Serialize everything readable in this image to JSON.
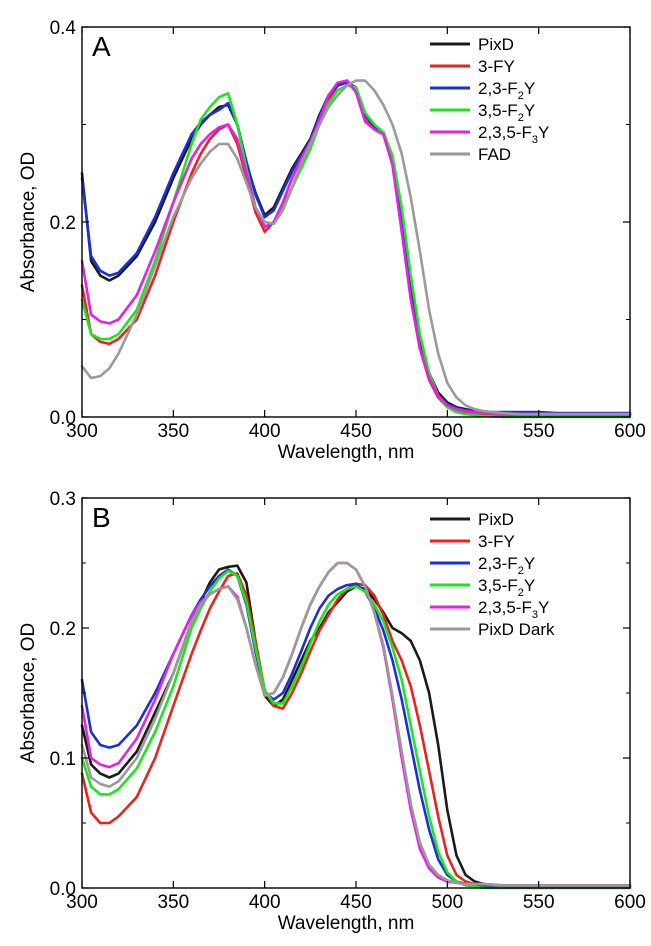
{
  "chart_data": [
    {
      "type": "line",
      "panel_label": "A",
      "xlabel": "Wavelength, nm",
      "ylabel": "Absorbance, OD",
      "xlim": [
        300,
        600
      ],
      "ylim": [
        0,
        0.4
      ],
      "xticks": [
        300,
        350,
        400,
        450,
        500,
        550,
        600
      ],
      "yticks": [
        0.0,
        0.2,
        0.4
      ],
      "ytick_labels": [
        "0.0",
        "0.2",
        "0.4"
      ],
      "legend_position": "top-right",
      "x": [
        300,
        305,
        310,
        315,
        320,
        330,
        340,
        350,
        360,
        365,
        370,
        375,
        380,
        385,
        390,
        395,
        400,
        405,
        410,
        415,
        420,
        425,
        430,
        435,
        440,
        445,
        450,
        455,
        460,
        465,
        470,
        475,
        480,
        485,
        490,
        495,
        500,
        505,
        510,
        515,
        520,
        530,
        540,
        550,
        560,
        580,
        600
      ],
      "series": [
        {
          "name": "PixD",
          "legend_parts": [
            {
              "t": "PixD"
            }
          ],
          "color": "#1a1a1a",
          "values": [
            0.25,
            0.16,
            0.145,
            0.14,
            0.145,
            0.165,
            0.2,
            0.245,
            0.285,
            0.3,
            0.31,
            0.318,
            0.32,
            0.3,
            0.26,
            0.23,
            0.207,
            0.215,
            0.235,
            0.255,
            0.27,
            0.285,
            0.31,
            0.33,
            0.342,
            0.345,
            0.335,
            0.305,
            0.295,
            0.29,
            0.26,
            0.2,
            0.13,
            0.08,
            0.045,
            0.025,
            0.015,
            0.01,
            0.008,
            0.006,
            0.005,
            0.004,
            0.004,
            0.004,
            0.003,
            0.003,
            0.003
          ]
        },
        {
          "name": "3-FY",
          "legend_parts": [
            {
              "t": "3-FY"
            }
          ],
          "color": "#e8231c",
          "values": [
            0.135,
            0.085,
            0.077,
            0.075,
            0.08,
            0.1,
            0.145,
            0.2,
            0.25,
            0.27,
            0.285,
            0.295,
            0.3,
            0.28,
            0.245,
            0.21,
            0.19,
            0.2,
            0.22,
            0.245,
            0.265,
            0.28,
            0.3,
            0.325,
            0.34,
            0.345,
            0.335,
            0.305,
            0.295,
            0.29,
            0.26,
            0.195,
            0.125,
            0.07,
            0.038,
            0.02,
            0.01,
            0.006,
            0.004,
            0.003,
            0.003,
            0.002,
            0.002,
            0.002,
            0.002,
            0.002,
            0.002
          ]
        },
        {
          "name": "2,3-F2Y",
          "legend_parts": [
            {
              "t": "2,3-F"
            },
            {
              "t": "2",
              "sub": true
            },
            {
              "t": "Y"
            }
          ],
          "color": "#1c2fd6",
          "values": [
            0.245,
            0.165,
            0.15,
            0.145,
            0.148,
            0.168,
            0.205,
            0.25,
            0.29,
            0.302,
            0.31,
            0.315,
            0.322,
            0.3,
            0.262,
            0.228,
            0.205,
            0.212,
            0.232,
            0.252,
            0.268,
            0.283,
            0.308,
            0.33,
            0.34,
            0.343,
            0.338,
            0.31,
            0.298,
            0.292,
            0.262,
            0.2,
            0.125,
            0.072,
            0.04,
            0.022,
            0.013,
            0.009,
            0.007,
            0.006,
            0.005,
            0.005,
            0.005,
            0.005,
            0.004,
            0.004,
            0.004
          ]
        },
        {
          "name": "3,5-F2Y",
          "legend_parts": [
            {
              "t": "3,5-F"
            },
            {
              "t": "2",
              "sub": true
            },
            {
              "t": "Y"
            }
          ],
          "color": "#1de51d",
          "values": [
            0.12,
            0.085,
            0.08,
            0.08,
            0.085,
            0.11,
            0.16,
            0.22,
            0.28,
            0.305,
            0.318,
            0.328,
            0.332,
            0.3,
            0.255,
            0.215,
            0.195,
            0.2,
            0.215,
            0.235,
            0.255,
            0.275,
            0.3,
            0.322,
            0.335,
            0.34,
            0.338,
            0.312,
            0.3,
            0.292,
            0.268,
            0.215,
            0.145,
            0.085,
            0.045,
            0.022,
            0.01,
            0.005,
            0.003,
            0.002,
            0.001,
            0.0,
            0.0,
            0.0,
            0.0,
            0.0,
            0.0
          ]
        },
        {
          "name": "2,3,5-F3Y",
          "legend_parts": [
            {
              "t": "2,3,5-F"
            },
            {
              "t": "3",
              "sub": true
            },
            {
              "t": "Y"
            }
          ],
          "color": "#e620e6",
          "values": [
            0.16,
            0.105,
            0.098,
            0.096,
            0.1,
            0.125,
            0.17,
            0.22,
            0.265,
            0.28,
            0.29,
            0.297,
            0.3,
            0.285,
            0.25,
            0.215,
            0.195,
            0.2,
            0.22,
            0.245,
            0.265,
            0.282,
            0.305,
            0.33,
            0.343,
            0.345,
            0.333,
            0.303,
            0.295,
            0.29,
            0.258,
            0.19,
            0.12,
            0.07,
            0.04,
            0.022,
            0.012,
            0.008,
            0.006,
            0.005,
            0.004,
            0.003,
            0.003,
            0.003,
            0.003,
            0.003,
            0.003
          ]
        },
        {
          "name": "FAD",
          "legend_parts": [
            {
              "t": "FAD"
            }
          ],
          "color": "#9a9a9a",
          "values": [
            0.052,
            0.04,
            0.042,
            0.05,
            0.065,
            0.105,
            0.155,
            0.205,
            0.245,
            0.26,
            0.272,
            0.28,
            0.28,
            0.265,
            0.24,
            0.215,
            0.2,
            0.198,
            0.212,
            0.235,
            0.26,
            0.28,
            0.3,
            0.318,
            0.33,
            0.34,
            0.345,
            0.345,
            0.335,
            0.32,
            0.3,
            0.27,
            0.225,
            0.17,
            0.11,
            0.065,
            0.035,
            0.02,
            0.012,
            0.008,
            0.006,
            0.004,
            0.003,
            0.003,
            0.003,
            0.003,
            0.003
          ]
        }
      ]
    },
    {
      "type": "line",
      "panel_label": "B",
      "xlabel": "Wavelength, nm",
      "ylabel": "Absorbance, OD",
      "xlim": [
        300,
        600
      ],
      "ylim": [
        0,
        0.3
      ],
      "xticks": [
        300,
        350,
        400,
        450,
        500,
        550,
        600
      ],
      "yticks": [
        0.0,
        0.1,
        0.2,
        0.3
      ],
      "ytick_labels": [
        "0.0",
        "0.1",
        "0.2",
        "0.3"
      ],
      "legend_position": "top-right",
      "x": [
        300,
        305,
        310,
        315,
        320,
        330,
        340,
        350,
        360,
        365,
        370,
        375,
        380,
        385,
        390,
        395,
        400,
        405,
        410,
        415,
        420,
        425,
        430,
        435,
        440,
        445,
        450,
        455,
        460,
        465,
        470,
        475,
        480,
        485,
        490,
        495,
        500,
        505,
        510,
        515,
        520,
        530,
        540,
        550,
        560,
        580,
        600
      ],
      "series": [
        {
          "name": "PixD",
          "legend_parts": [
            {
              "t": "PixD"
            }
          ],
          "color": "#1a1a1a",
          "values": [
            0.125,
            0.095,
            0.088,
            0.085,
            0.088,
            0.105,
            0.135,
            0.165,
            0.205,
            0.22,
            0.235,
            0.245,
            0.247,
            0.248,
            0.235,
            0.19,
            0.148,
            0.14,
            0.145,
            0.16,
            0.175,
            0.19,
            0.2,
            0.212,
            0.22,
            0.228,
            0.232,
            0.23,
            0.222,
            0.212,
            0.2,
            0.196,
            0.19,
            0.175,
            0.15,
            0.11,
            0.06,
            0.025,
            0.01,
            0.005,
            0.003,
            0.002,
            0.002,
            0.002,
            0.002,
            0.002,
            0.002
          ]
        },
        {
          "name": "3-FY",
          "legend_parts": [
            {
              "t": "3-FY"
            }
          ],
          "color": "#e8231c",
          "values": [
            0.088,
            0.058,
            0.05,
            0.05,
            0.055,
            0.07,
            0.1,
            0.14,
            0.18,
            0.198,
            0.215,
            0.228,
            0.24,
            0.242,
            0.225,
            0.19,
            0.152,
            0.14,
            0.138,
            0.15,
            0.165,
            0.182,
            0.198,
            0.21,
            0.222,
            0.23,
            0.234,
            0.233,
            0.225,
            0.21,
            0.19,
            0.175,
            0.155,
            0.125,
            0.09,
            0.055,
            0.025,
            0.01,
            0.005,
            0.003,
            0.002,
            0.001,
            0.001,
            0.001,
            0.001,
            0.001,
            0.001
          ]
        },
        {
          "name": "2,3-F2Y",
          "legend_parts": [
            {
              "t": "2,3-F"
            },
            {
              "t": "2",
              "sub": true
            },
            {
              "t": "Y"
            }
          ],
          "color": "#1c2fd6",
          "values": [
            0.16,
            0.12,
            0.11,
            0.108,
            0.11,
            0.125,
            0.15,
            0.18,
            0.21,
            0.222,
            0.232,
            0.24,
            0.245,
            0.24,
            0.218,
            0.182,
            0.15,
            0.145,
            0.15,
            0.165,
            0.182,
            0.2,
            0.215,
            0.225,
            0.23,
            0.233,
            0.234,
            0.228,
            0.215,
            0.198,
            0.175,
            0.145,
            0.11,
            0.075,
            0.045,
            0.022,
            0.01,
            0.005,
            0.003,
            0.002,
            0.002,
            0.002,
            0.002,
            0.002,
            0.002,
            0.002,
            0.002
          ]
        },
        {
          "name": "3,5-F2Y",
          "legend_parts": [
            {
              "t": "3,5-F"
            },
            {
              "t": "2",
              "sub": true
            },
            {
              "t": "Y"
            }
          ],
          "color": "#1de51d",
          "values": [
            0.1,
            0.078,
            0.072,
            0.072,
            0.076,
            0.092,
            0.12,
            0.155,
            0.2,
            0.215,
            0.228,
            0.238,
            0.244,
            0.24,
            0.22,
            0.185,
            0.152,
            0.142,
            0.142,
            0.155,
            0.17,
            0.188,
            0.205,
            0.218,
            0.226,
            0.23,
            0.232,
            0.228,
            0.218,
            0.205,
            0.185,
            0.16,
            0.125,
            0.09,
            0.055,
            0.028,
            0.012,
            0.005,
            0.002,
            0.001,
            0.0,
            0.0,
            0.0,
            0.0,
            0.0,
            0.0,
            0.0
          ]
        },
        {
          "name": "2,3,5-F3Y",
          "legend_parts": [
            {
              "t": "2,3,5-F"
            },
            {
              "t": "3",
              "sub": true
            },
            {
              "t": "Y"
            }
          ],
          "color": "#e620e6",
          "values": [
            0.14,
            0.1,
            0.095,
            0.093,
            0.096,
            0.115,
            0.145,
            0.18,
            0.21,
            0.22,
            0.226,
            0.23,
            0.232,
            0.224,
            0.2,
            0.172,
            0.148,
            0.15,
            0.162,
            0.18,
            0.2,
            0.218,
            0.232,
            0.243,
            0.25,
            0.25,
            0.245,
            0.232,
            0.212,
            0.185,
            0.145,
            0.1,
            0.06,
            0.03,
            0.015,
            0.008,
            0.005,
            0.004,
            0.003,
            0.003,
            0.003,
            0.002,
            0.002,
            0.002,
            0.002,
            0.002,
            0.002
          ]
        },
        {
          "name": "PixD Dark",
          "legend_parts": [
            {
              "t": "PixD Dark"
            }
          ],
          "color": "#9a9a9a",
          "values": [
            0.11,
            0.085,
            0.08,
            0.078,
            0.082,
            0.1,
            0.13,
            0.165,
            0.205,
            0.218,
            0.226,
            0.23,
            0.232,
            0.222,
            0.2,
            0.172,
            0.148,
            0.15,
            0.162,
            0.18,
            0.2,
            0.218,
            0.232,
            0.243,
            0.25,
            0.25,
            0.245,
            0.232,
            0.212,
            0.187,
            0.148,
            0.105,
            0.065,
            0.035,
            0.018,
            0.01,
            0.006,
            0.004,
            0.003,
            0.003,
            0.003,
            0.002,
            0.002,
            0.002,
            0.002,
            0.002,
            0.002
          ]
        }
      ]
    }
  ]
}
